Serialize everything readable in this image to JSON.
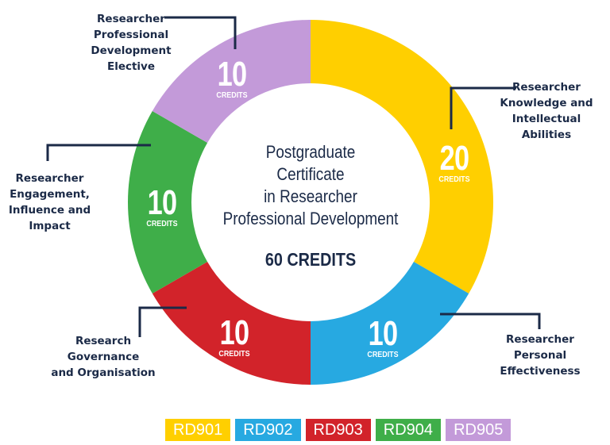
{
  "chart_data": {
    "type": "pie",
    "variant": "donut",
    "title": "Postgraduate Certificate in Researcher Professional Development",
    "total_label": "60 CREDITS",
    "total": 60,
    "unit_label": "CREDITS",
    "categories": [
      "Researcher Knowledge and Intellectual Abilities",
      "Researcher Personal Effectiveness",
      "Research Governance and Organisation",
      "Researcher Engagement, Influence and Impact",
      "Researcher Professional Development Elective"
    ],
    "codes": [
      "RD901",
      "RD902",
      "RD903",
      "RD904",
      "RD905"
    ],
    "values": [
      20,
      10,
      10,
      10,
      10
    ],
    "colors": [
      "#ffcf00",
      "#27a9e1",
      "#d2232a",
      "#3fae49",
      "#c39ad9"
    ],
    "legend_position": "bottom"
  },
  "center": {
    "title_lines": [
      "Postgraduate",
      "Certificate",
      "in Researcher",
      "Professional Development"
    ],
    "credits": "60 CREDITS"
  },
  "segments": [
    {
      "code": "RD901",
      "value": "20",
      "unit": "CREDITS",
      "label_lines": [
        "Researcher",
        "Knowledge and",
        "Intellectual",
        "Abilities"
      ],
      "color": "#ffcf00"
    },
    {
      "code": "RD902",
      "value": "10",
      "unit": "CREDITS",
      "label_lines": [
        "Researcher",
        "Personal",
        "Effectiveness"
      ],
      "color": "#27a9e1"
    },
    {
      "code": "RD903",
      "value": "10",
      "unit": "CREDITS",
      "label_lines": [
        "Research",
        "Governance",
        "and Organisation"
      ],
      "color": "#d2232a"
    },
    {
      "code": "RD904",
      "value": "10",
      "unit": "CREDITS",
      "label_lines": [
        "Researcher",
        "Engagement,",
        "Influence and",
        "Impact"
      ],
      "color": "#3fae49"
    },
    {
      "code": "RD905",
      "value": "10",
      "unit": "CREDITS",
      "label_lines": [
        "Researcher",
        "Professional",
        "Development",
        "Elective"
      ],
      "color": "#c39ad9"
    }
  ],
  "legend": [
    {
      "label": "RD901",
      "color": "#ffcf00"
    },
    {
      "label": "RD902",
      "color": "#27a9e1"
    },
    {
      "label": "RD903",
      "color": "#d2232a"
    },
    {
      "label": "RD904",
      "color": "#3fae49"
    },
    {
      "label": "RD905",
      "color": "#c39ad9"
    }
  ],
  "leader_color": "#1b2a47"
}
